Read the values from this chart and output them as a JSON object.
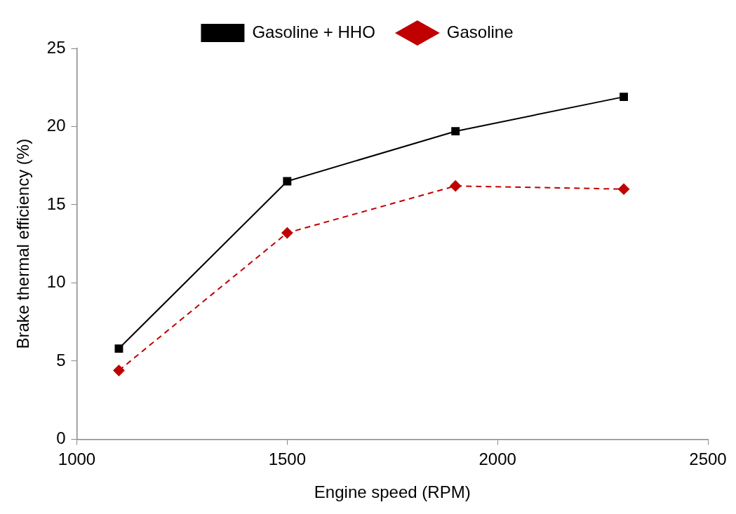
{
  "chart_data": {
    "type": "line",
    "xlabel": "Engine speed (RPM)",
    "ylabel": "Brake thermal efficiency (%)",
    "x": [
      1100,
      1500,
      1900,
      2300
    ],
    "series": [
      {
        "name": "Gasoline + HHO",
        "color": "#000000",
        "values": [
          5.8,
          16.5,
          19.7,
          21.9
        ],
        "marker": "square",
        "line_style": "solid"
      },
      {
        "name": "Gasoline",
        "color": "#c00000",
        "values": [
          4.4,
          13.2,
          16.2,
          16.0
        ],
        "marker": "diamond",
        "line_style": "dashed"
      }
    ],
    "xlim": [
      1000,
      2500
    ],
    "xticks": [
      1000,
      1500,
      2000,
      2500
    ],
    "ylim": [
      0,
      25
    ],
    "yticks": [
      0,
      5,
      10,
      15,
      20,
      25
    ],
    "grid": false,
    "legend": "top"
  }
}
